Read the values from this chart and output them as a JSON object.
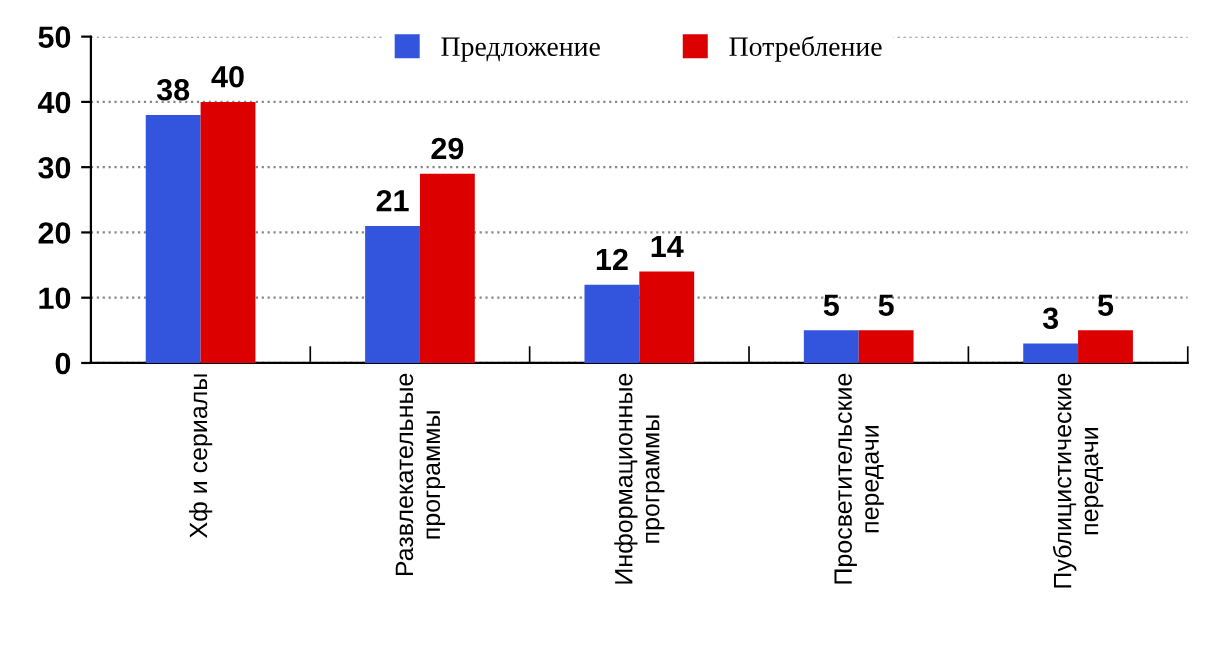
{
  "chart_data": {
    "type": "bar",
    "categories": [
      "Хф и сериалы",
      "Развлекательные\nпрограммы",
      "Информационные\nпрограммы",
      "Просветительские\nпередачи",
      "Публицистические\nпередачи"
    ],
    "series": [
      {
        "name": "Предложение",
        "color": "#3355dd",
        "values": [
          38,
          21,
          12,
          5,
          3
        ]
      },
      {
        "name": "Потребление",
        "color": "#dd0000",
        "values": [
          40,
          29,
          14,
          5,
          5
        ]
      }
    ],
    "ylim": [
      0,
      50
    ],
    "yticks": [
      0,
      10,
      20,
      30,
      40,
      50
    ],
    "grid": "y",
    "legend": "top",
    "data_labels": true
  }
}
